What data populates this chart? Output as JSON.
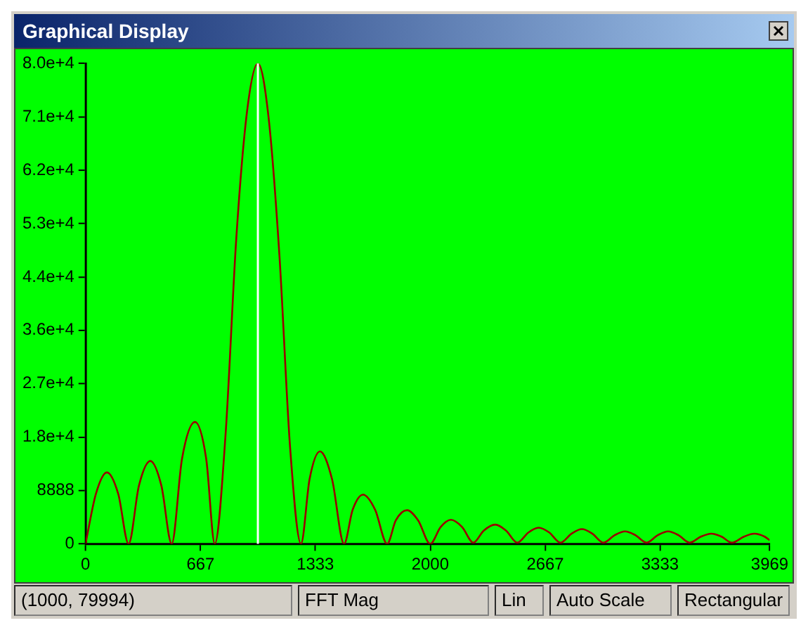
{
  "chart_data": {
    "type": "line",
    "title": "Graphical Display",
    "x": [
      0,
      60,
      124,
      190,
      250,
      310,
      376,
      440,
      500,
      560,
      635,
      700,
      750,
      812,
      875,
      937,
      1000,
      1062,
      1125,
      1187,
      1250,
      1300,
      1360,
      1430,
      1500,
      1550,
      1610,
      1680,
      1750,
      1800,
      1865,
      1930,
      2000,
      2060,
      2120,
      2185,
      2250,
      2310,
      2377,
      2440,
      2505,
      2570,
      2630,
      2690,
      2755,
      2820,
      2880,
      2940,
      3005,
      3070,
      3130,
      3190,
      3255,
      3320,
      3380,
      3440,
      3505,
      3570,
      3630,
      3690,
      3750,
      3820,
      3880,
      3940,
      3969
    ],
    "series": [
      {
        "color": "#990000",
        "values": [
          0,
          8300,
          11900,
          8300,
          0,
          9700,
          13800,
          9700,
          0,
          14200,
          20300,
          14200,
          0,
          18000,
          51000,
          72000,
          79994,
          71000,
          48000,
          16000,
          0,
          10800,
          15400,
          10800,
          0,
          5700,
          8200,
          5700,
          0,
          3900,
          5600,
          3900,
          0,
          2800,
          4000,
          2800,
          200,
          2200,
          3200,
          2200,
          200,
          1900,
          2700,
          1900,
          200,
          1700,
          2450,
          1700,
          200,
          1450,
          2070,
          1450,
          200,
          1450,
          2070,
          1450,
          200,
          1200,
          1700,
          1200,
          200,
          1200,
          1700,
          1200,
          600
        ]
      }
    ],
    "xlim": [
      0,
      3969
    ],
    "xticks": [
      0,
      667,
      1333,
      2000,
      2667,
      3333,
      3969
    ],
    "ylim": [
      0,
      79994
    ],
    "yticks": [
      0,
      8888,
      {
        "value": 17776,
        "label": "1.8e+4"
      },
      {
        "value": 26665,
        "label": "2.7e+4"
      },
      {
        "value": 35553,
        "label": "3.6e+4"
      },
      {
        "value": 44441,
        "label": "4.4e+4"
      },
      {
        "value": 53329,
        "label": "5.3e+4"
      },
      {
        "value": 62218,
        "label": "6.2e+4"
      },
      {
        "value": 71106,
        "label": "7.1e+4"
      },
      {
        "value": 79994,
        "label": "8.0e+4"
      }
    ],
    "ref_lines": [
      {
        "axis": "x",
        "value": 1000,
        "color": "#ffffff"
      }
    ],
    "annotations": [
      "(1000, 79994)",
      "FFT Mag",
      "Lin",
      "Auto Scale",
      "Rectangular"
    ],
    "grid": false,
    "legend": false,
    "marker": "none",
    "line_style": "solid"
  }
}
